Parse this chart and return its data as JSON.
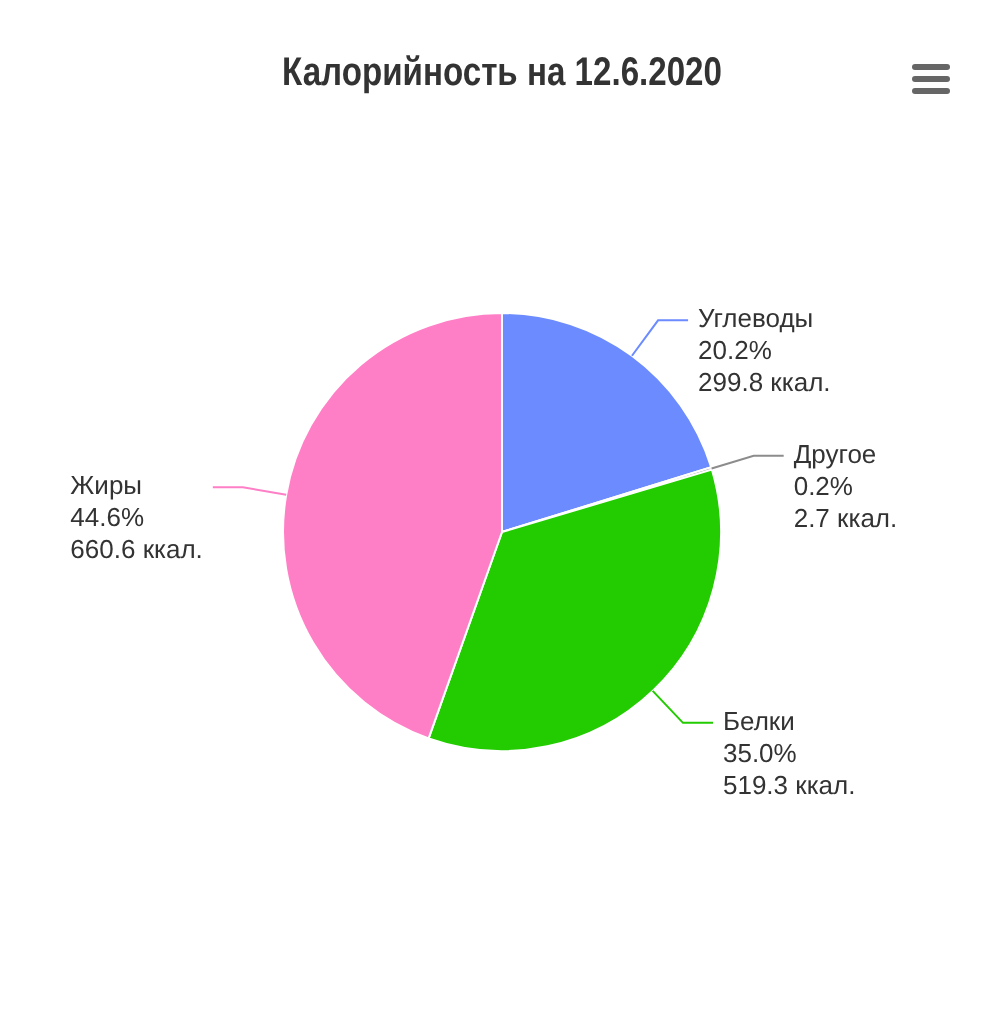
{
  "chart_data": {
    "type": "pie",
    "title": "Калорийность на 12.6.2020",
    "categories": [
      "Углеводы",
      "Другое",
      "Белки",
      "Жиры"
    ],
    "values": [
      299.8,
      2.7,
      519.3,
      660.6
    ],
    "value_labels": [
      "20.2%\n299.8 ккал.",
      "0.2%\n2.7 ккал.",
      "35.0%\n519.3 ккал.",
      "44.6%\n660.6 ккал."
    ],
    "colors": [
      "#6b8bff",
      "#8c8c8c",
      "#22cc00",
      "#ff7fc7"
    ],
    "legend": false
  }
}
